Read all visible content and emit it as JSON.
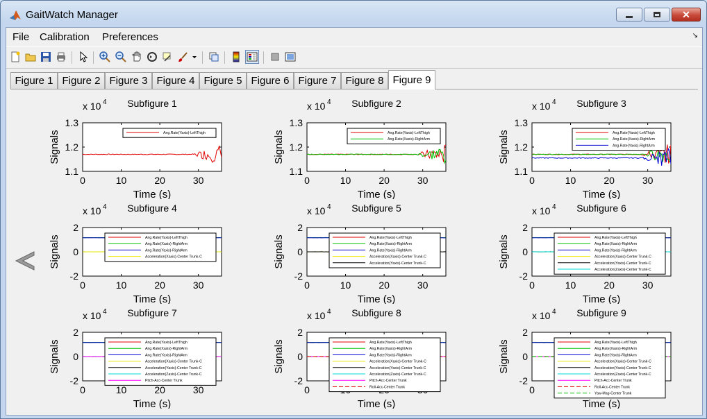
{
  "window": {
    "title": "GaitWatch Manager",
    "minimize_label": "—",
    "maximize_label": "□",
    "close_label": "✕"
  },
  "menu": {
    "items": [
      "File",
      "Calibration",
      "Preferences"
    ]
  },
  "toolbar": {
    "icons": [
      "new-icon",
      "open-icon",
      "save-icon",
      "print-icon",
      "pointer-icon",
      "zoom-in-icon",
      "zoom-out-icon",
      "pan-icon",
      "rotate-icon",
      "data-cursor-icon",
      "brush-icon",
      "brush-dropdown-icon",
      "link-icon",
      "colorbar-icon",
      "legend-icon",
      "hide-plot-tools-icon",
      "show-plot-tools-icon"
    ]
  },
  "tabs": {
    "items": [
      "Figure 1",
      "Figure 2",
      "Figure 3",
      "Figure 4",
      "Figure 5",
      "Figure 6",
      "Figure 7",
      "Figure 8",
      "Figure 9"
    ],
    "active": 8
  },
  "colors": {
    "red": "#e00000",
    "green": "#00c000",
    "blue": "#0000d0",
    "yellow": "#e8e800",
    "black": "#000000",
    "cyan": "#00d8d8",
    "magenta": "#ff00ff"
  },
  "subfigures": [
    {
      "title": "Subfigure 1",
      "ylabel": "Signals",
      "xlabel": "Time (s)",
      "exponent_base": "x 10",
      "exponent": "4",
      "yticks": [
        "1.3",
        "1.2",
        "1.1"
      ],
      "xticks": [
        "0",
        "10",
        "20",
        "30"
      ],
      "ylim": [
        11000,
        13000
      ],
      "xlim": [
        0,
        36
      ],
      "legend": [
        {
          "label": "Ang.Rate(Yaxis)-LeftThigh",
          "color": "red"
        }
      ]
    },
    {
      "title": "Subfigure 2",
      "ylabel": "Signals",
      "xlabel": "Time (s)",
      "exponent_base": "x 10",
      "exponent": "4",
      "yticks": [
        "1.3",
        "1.2",
        "1.1"
      ],
      "xticks": [
        "0",
        "10",
        "20",
        "30"
      ],
      "ylim": [
        11000,
        13000
      ],
      "xlim": [
        0,
        36
      ],
      "legend": [
        {
          "label": "Ang.Rate(Yaxis)-LeftThigh",
          "color": "red"
        },
        {
          "label": "Ang.Rate(Xaxis)-RightArm",
          "color": "green"
        }
      ]
    },
    {
      "title": "Subfigure 3",
      "ylabel": "Signals",
      "xlabel": "Time (s)",
      "exponent_base": "x 10",
      "exponent": "4",
      "yticks": [
        "1.3",
        "1.2",
        "1.1"
      ],
      "xticks": [
        "0",
        "10",
        "20",
        "30"
      ],
      "ylim": [
        11000,
        13000
      ],
      "xlim": [
        0,
        36
      ],
      "legend": [
        {
          "label": "Ang.Rate(Yaxis)-LeftThigh",
          "color": "red"
        },
        {
          "label": "Ang.Rate(Xaxis)-RightArm",
          "color": "green"
        },
        {
          "label": "Ang.Rate(Yaxis)-RightArm",
          "color": "blue"
        }
      ]
    },
    {
      "title": "Subfigure 4",
      "ylabel": "Signals",
      "xlabel": "Time (s)",
      "exponent_base": "x 10",
      "exponent": "4",
      "yticks": [
        "2",
        "0",
        "-2"
      ],
      "xticks": [
        "0",
        "10",
        "20",
        "30"
      ],
      "ylim": [
        -20000,
        20000
      ],
      "xlim": [
        0,
        36
      ],
      "legend": [
        {
          "label": "Ang.Rate(Yaxis)-LeftThigh",
          "color": "red"
        },
        {
          "label": "Ang.Rate(Xaxis)-RightArm",
          "color": "green"
        },
        {
          "label": "Ang.Rate(Yaxis)-RightArm",
          "color": "blue"
        },
        {
          "label": "Acceleration(Xaxis)-Center Trunk-C",
          "color": "yellow"
        }
      ]
    },
    {
      "title": "Subfigure 5",
      "ylabel": "Signals",
      "xlabel": "Time (s)",
      "exponent_base": "x 10",
      "exponent": "4",
      "yticks": [
        "2",
        "0",
        "-2"
      ],
      "xticks": [
        "0",
        "10",
        "20",
        "30"
      ],
      "ylim": [
        -20000,
        20000
      ],
      "xlim": [
        0,
        36
      ],
      "legend": [
        {
          "label": "Ang.Rate(Yaxis)-LeftThigh",
          "color": "red"
        },
        {
          "label": "Ang.Rate(Xaxis)-RightArm",
          "color": "green"
        },
        {
          "label": "Ang.Rate(Yaxis)-RightArm",
          "color": "blue"
        },
        {
          "label": "Acceleration(Xaxis)-Center Trunk-C",
          "color": "yellow"
        },
        {
          "label": "Acceleration(Yaxis)-Center Trunk-C",
          "color": "black"
        }
      ]
    },
    {
      "title": "Subfigure 6",
      "ylabel": "Signals",
      "xlabel": "Time (s)",
      "exponent_base": "x 10",
      "exponent": "4",
      "yticks": [
        "2",
        "0",
        "-2"
      ],
      "xticks": [
        "0",
        "10",
        "20",
        "30"
      ],
      "ylim": [
        -20000,
        20000
      ],
      "xlim": [
        0,
        36
      ],
      "legend": [
        {
          "label": "Ang.Rate(Yaxis)-LeftThigh",
          "color": "red"
        },
        {
          "label": "Ang.Rate(Xaxis)-RightArm",
          "color": "green"
        },
        {
          "label": "Ang.Rate(Yaxis)-RightArm",
          "color": "blue"
        },
        {
          "label": "Acceleration(Xaxis)-Center Trunk-C",
          "color": "yellow"
        },
        {
          "label": "Acceleration(Yaxis)-Center Trunk-C",
          "color": "black"
        },
        {
          "label": "Acceleration(Zaxis)-Center Trunk-C",
          "color": "cyan"
        }
      ]
    },
    {
      "title": "Subfigure 7",
      "ylabel": "Signals",
      "xlabel": "Time (s)",
      "exponent_base": "x 10",
      "exponent": "4",
      "yticks": [
        "2",
        "0",
        "-2"
      ],
      "xticks": [
        "0",
        "10",
        "20",
        "30"
      ],
      "ylim": [
        -20000,
        20000
      ],
      "xlim": [
        0,
        36
      ],
      "legend": [
        {
          "label": "Ang.Rate(Yaxis)-LeftThigh",
          "color": "red"
        },
        {
          "label": "Ang.Rate(Xaxis)-RightArm",
          "color": "green"
        },
        {
          "label": "Ang.Rate(Yaxis)-RightArm",
          "color": "blue"
        },
        {
          "label": "Acceleration(Xaxis)-Center Trunk-C",
          "color": "yellow"
        },
        {
          "label": "Acceleration(Yaxis)-Center Trunk-C",
          "color": "black"
        },
        {
          "label": "Acceleration(Zaxis)-Center Trunk-C",
          "color": "cyan"
        },
        {
          "label": "Pitch-Acc-Center Trunk",
          "color": "magenta"
        }
      ]
    },
    {
      "title": "Subfigure 8",
      "ylabel": "Signals",
      "xlabel": "Time (s)",
      "exponent_base": "x 10",
      "exponent": "4",
      "yticks": [
        "2",
        "0",
        "-2"
      ],
      "xticks": [
        "0",
        "10",
        "20",
        "30"
      ],
      "ylim": [
        -20000,
        20000
      ],
      "xlim": [
        0,
        36
      ],
      "legend": [
        {
          "label": "Ang.Rate(Yaxis)-LeftThigh",
          "color": "red"
        },
        {
          "label": "Ang.Rate(Xaxis)-RightArm",
          "color": "green"
        },
        {
          "label": "Ang.Rate(Yaxis)-RightArm",
          "color": "blue"
        },
        {
          "label": "Acceleration(Xaxis)-Center Trunk-C",
          "color": "yellow"
        },
        {
          "label": "Acceleration(Yaxis)-Center Trunk-C",
          "color": "black"
        },
        {
          "label": "Acceleration(Zaxis)-Center Trunk-C",
          "color": "cyan"
        },
        {
          "label": "Pitch-Acc-Center Trunk",
          "color": "magenta"
        },
        {
          "label": "Roll-Acc-Center Trunk",
          "color": "red",
          "dashed": true
        }
      ]
    },
    {
      "title": "Subfigure 9",
      "ylabel": "Signals",
      "xlabel": "Time (s)",
      "exponent_base": "x 10",
      "exponent": "4",
      "yticks": [
        "2",
        "0",
        "-2"
      ],
      "xticks": [
        "0",
        "10",
        "20",
        "30"
      ],
      "ylim": [
        -20000,
        20000
      ],
      "xlim": [
        0,
        36
      ],
      "legend": [
        {
          "label": "Ang.Rate(Yaxis)-LeftThigh",
          "color": "red"
        },
        {
          "label": "Ang.Rate(Xaxis)-RightArm",
          "color": "green"
        },
        {
          "label": "Ang.Rate(Yaxis)-RightArm",
          "color": "blue"
        },
        {
          "label": "Acceleration(Xaxis)-Center Trunk-C",
          "color": "yellow"
        },
        {
          "label": "Acceleration(Yaxis)-Center Trunk-C",
          "color": "black"
        },
        {
          "label": "Acceleration(Zaxis)-Center Trunk-C",
          "color": "cyan"
        },
        {
          "label": "Pitch-Acc-Center Trunk",
          "color": "magenta"
        },
        {
          "label": "Roll-Acc-Center Trunk",
          "color": "red",
          "dashed": true
        },
        {
          "label": "Yaw-Mag-Center Trunk",
          "color": "green",
          "dashed": true
        }
      ]
    }
  ],
  "chart_data": [
    {
      "type": "line",
      "title": "Subfigure 1",
      "xlabel": "Time (s)",
      "ylabel": "Signals",
      "y_multiplier": "x 10^4",
      "xlim": [
        0,
        36
      ],
      "ylim": [
        11000,
        13000
      ],
      "series": [
        {
          "name": "Ang.Rate(Yaxis)-LeftThigh",
          "level": 11700
        }
      ]
    },
    {
      "type": "line",
      "title": "Subfigure 2",
      "xlabel": "Time (s)",
      "ylabel": "Signals",
      "y_multiplier": "x 10^4",
      "xlim": [
        0,
        36
      ],
      "ylim": [
        11000,
        13000
      ],
      "series": [
        {
          "name": "Ang.Rate(Yaxis)-LeftThigh",
          "level": 11700
        },
        {
          "name": "Ang.Rate(Xaxis)-RightArm",
          "level": 11700
        }
      ]
    },
    {
      "type": "line",
      "title": "Subfigure 3",
      "xlabel": "Time (s)",
      "ylabel": "Signals",
      "y_multiplier": "x 10^4",
      "xlim": [
        0,
        36
      ],
      "ylim": [
        11000,
        13000
      ],
      "series": [
        {
          "name": "Ang.Rate(Yaxis)-LeftThigh",
          "level": 11700
        },
        {
          "name": "Ang.Rate(Xaxis)-RightArm",
          "level": 11700
        },
        {
          "name": "Ang.Rate(Yaxis)-RightArm",
          "level": 11550
        }
      ]
    },
    {
      "type": "line",
      "title": "Subfigure 4",
      "xlabel": "Time (s)",
      "ylabel": "Signals",
      "y_multiplier": "x 10^4",
      "xlim": [
        0,
        36
      ],
      "ylim": [
        -20000,
        20000
      ],
      "series": [
        {
          "name": "Ang.Rate(Yaxis)-LeftThigh",
          "level": 11700
        },
        {
          "name": "Ang.Rate(Xaxis)-RightArm",
          "level": 11700
        },
        {
          "name": "Ang.Rate(Yaxis)-RightArm",
          "level": 11550
        },
        {
          "name": "Acceleration(Xaxis)-Center Trunk-C",
          "level": 0
        }
      ]
    },
    {
      "type": "line",
      "title": "Subfigure 5",
      "xlabel": "Time (s)",
      "ylabel": "Signals",
      "y_multiplier": "x 10^4",
      "xlim": [
        0,
        36
      ],
      "ylim": [
        -20000,
        20000
      ],
      "series": [
        {
          "name": "Ang.Rate(Yaxis)-LeftThigh",
          "level": 11700
        },
        {
          "name": "Ang.Rate(Xaxis)-RightArm",
          "level": 11700
        },
        {
          "name": "Ang.Rate(Yaxis)-RightArm",
          "level": 11550
        },
        {
          "name": "Acceleration(Xaxis)-Center Trunk-C",
          "level": 0
        },
        {
          "name": "Acceleration(Yaxis)-Center Trunk-C",
          "level": 0
        }
      ]
    },
    {
      "type": "line",
      "title": "Subfigure 6",
      "xlabel": "Time (s)",
      "ylabel": "Signals",
      "y_multiplier": "x 10^4",
      "xlim": [
        0,
        36
      ],
      "ylim": [
        -20000,
        20000
      ],
      "series": [
        {
          "name": "Ang.Rate(Yaxis)-LeftThigh",
          "level": 11700
        },
        {
          "name": "Ang.Rate(Xaxis)-RightArm",
          "level": 11700
        },
        {
          "name": "Ang.Rate(Yaxis)-RightArm",
          "level": 11550
        },
        {
          "name": "Acceleration(Xaxis)-Center Trunk-C",
          "level": 0
        },
        {
          "name": "Acceleration(Yaxis)-Center Trunk-C",
          "level": 0
        },
        {
          "name": "Acceleration(Zaxis)-Center Trunk-C",
          "level": 0
        }
      ]
    },
    {
      "type": "line",
      "title": "Subfigure 7",
      "xlabel": "Time (s)",
      "ylabel": "Signals",
      "y_multiplier": "x 10^4",
      "xlim": [
        0,
        36
      ],
      "ylim": [
        -20000,
        20000
      ],
      "series": [
        {
          "name": "Ang.Rate(Yaxis)-LeftThigh",
          "level": 11700
        },
        {
          "name": "Ang.Rate(Xaxis)-RightArm",
          "level": 11700
        },
        {
          "name": "Ang.Rate(Yaxis)-RightArm",
          "level": 11550
        },
        {
          "name": "Acceleration(Xaxis)-Center Trunk-C",
          "level": 0
        },
        {
          "name": "Acceleration(Yaxis)-Center Trunk-C",
          "level": 0
        },
        {
          "name": "Acceleration(Zaxis)-Center Trunk-C",
          "level": 0
        },
        {
          "name": "Pitch-Acc-Center Trunk",
          "level": 0
        }
      ]
    },
    {
      "type": "line",
      "title": "Subfigure 8",
      "xlabel": "Time (s)",
      "ylabel": "Signals",
      "y_multiplier": "x 10^4",
      "xlim": [
        0,
        36
      ],
      "ylim": [
        -20000,
        20000
      ],
      "series": [
        {
          "name": "Ang.Rate(Yaxis)-LeftThigh",
          "level": 11700
        },
        {
          "name": "Ang.Rate(Xaxis)-RightArm",
          "level": 11700
        },
        {
          "name": "Ang.Rate(Yaxis)-RightArm",
          "level": 11550
        },
        {
          "name": "Acceleration(Xaxis)-Center Trunk-C",
          "level": 0
        },
        {
          "name": "Acceleration(Yaxis)-Center Trunk-C",
          "level": 0
        },
        {
          "name": "Acceleration(Zaxis)-Center Trunk-C",
          "level": 0
        },
        {
          "name": "Pitch-Acc-Center Trunk",
          "level": 0
        },
        {
          "name": "Roll-Acc-Center Trunk",
          "level": 0
        }
      ]
    },
    {
      "type": "line",
      "title": "Subfigure 9",
      "xlabel": "Time (s)",
      "ylabel": "Signals",
      "y_multiplier": "x 10^4",
      "xlim": [
        0,
        36
      ],
      "ylim": [
        -20000,
        20000
      ],
      "series": [
        {
          "name": "Ang.Rate(Yaxis)-LeftThigh",
          "level": 11700
        },
        {
          "name": "Ang.Rate(Xaxis)-RightArm",
          "level": 11700
        },
        {
          "name": "Ang.Rate(Yaxis)-RightArm",
          "level": 11550
        },
        {
          "name": "Acceleration(Xaxis)-Center Trunk-C",
          "level": 0
        },
        {
          "name": "Acceleration(Yaxis)-Center Trunk-C",
          "level": 0
        },
        {
          "name": "Acceleration(Zaxis)-Center Trunk-C",
          "level": 0
        },
        {
          "name": "Pitch-Acc-Center Trunk",
          "level": 0
        },
        {
          "name": "Roll-Acc-Center Trunk",
          "level": 0
        },
        {
          "name": "Yaw-Mag-Center Trunk",
          "level": 0
        }
      ]
    }
  ]
}
